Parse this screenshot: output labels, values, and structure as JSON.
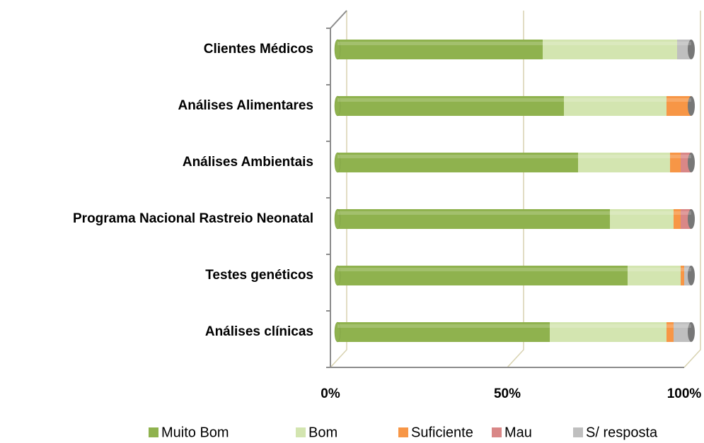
{
  "chart_data": {
    "type": "stacked-bar-horizontal",
    "categories": [
      "Clientes Médicos",
      "Análises Alimentares",
      "Análises Ambientais",
      "Programa Nacional Rastreio Neonatal",
      "Testes genéticos",
      "Análises clínicas"
    ],
    "series": [
      {
        "name": "Muito Bom",
        "color": "#8fb24e",
        "values": [
          58,
          64,
          68,
          77,
          82,
          60
        ]
      },
      {
        "name": "Bom",
        "color": "#d3e5b0",
        "values": [
          38,
          29,
          26,
          18,
          15,
          33
        ]
      },
      {
        "name": "Suficiente",
        "color": "#f79646",
        "values": [
          0,
          7,
          3,
          2,
          1,
          2
        ]
      },
      {
        "name": "Mau",
        "color": "#d98787",
        "values": [
          0,
          0,
          3,
          3,
          0,
          0
        ]
      },
      {
        "name": "S/ resposta",
        "color": "#bfbfbf",
        "values": [
          4,
          0,
          0,
          0,
          2,
          5
        ]
      }
    ],
    "xlim": [
      0,
      100
    ],
    "xticks": [
      {
        "value": 0,
        "label": "0%"
      },
      {
        "value": 50,
        "label": "50%"
      },
      {
        "value": 100,
        "label": "100%"
      }
    ],
    "grid": true,
    "legend": "bottom"
  }
}
